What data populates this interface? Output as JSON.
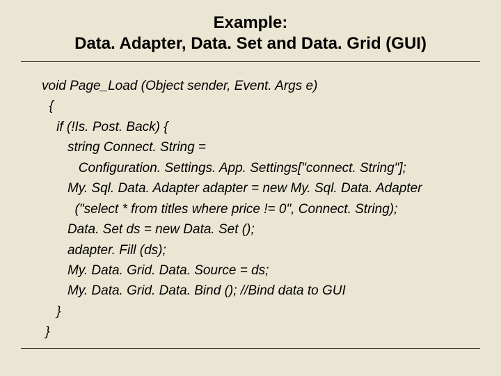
{
  "colors": {
    "background": "#ebe6d3",
    "text": "#000000",
    "rule": "#3a3a2a"
  },
  "typography": {
    "title_fontsize": 24,
    "title_weight": "bold",
    "code_fontsize": 19,
    "code_style": "italic",
    "font_family": "Arial"
  },
  "title": {
    "line1": "Example:",
    "line2": "Data. Adapter, Data. Set and Data. Grid (GUI)"
  },
  "code": {
    "l1": "void Page_Load (Object sender, Event. Args e)",
    "l2": "  {",
    "l3": "    if (!Is. Post. Back) {",
    "l4": "       string Connect. String =",
    "l5": "          Configuration. Settings. App. Settings[\"connect. String\"];",
    "l6": "       My. Sql. Data. Adapter adapter = new My. Sql. Data. Adapter",
    "l7": "         (\"select * from titles where price != 0\", Connect. String);",
    "l8": "       Data. Set ds = new Data. Set ();",
    "l9": "       adapter. Fill (ds);",
    "l10": "       My. Data. Grid. Data. Source = ds;",
    "l11": "       My. Data. Grid. Data. Bind (); //Bind data to GUI",
    "l12": "    }",
    "l13": " }"
  }
}
